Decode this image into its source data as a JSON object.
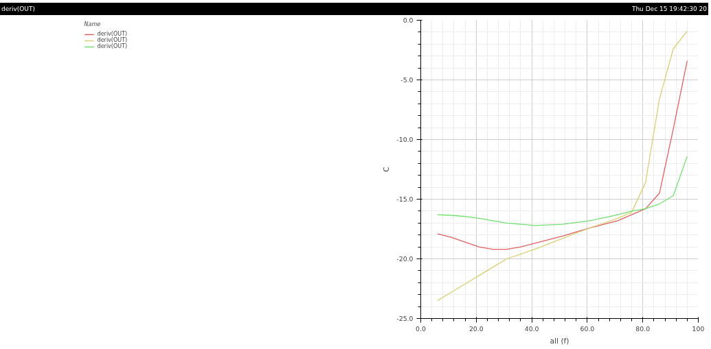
{
  "chart_data": {
    "type": "line",
    "title": "deriv(OUT)",
    "annotations": [
      "Thu Dec 15 19:42:30 20"
    ],
    "xlabel": "all (f)",
    "ylabel": "C",
    "legend_title": "Name",
    "legend": "top left",
    "grid": true,
    "marker": "none",
    "line_style": "solid",
    "x": [
      6,
      11,
      16,
      21,
      26,
      31,
      36,
      41,
      51,
      61,
      71,
      76,
      81,
      86,
      91,
      96
    ],
    "xlim": [
      0,
      100
    ],
    "xticks": [
      {
        "value": 0,
        "label": "0.0"
      },
      {
        "value": 20,
        "label": "20.0"
      },
      {
        "value": 40,
        "label": "40.0"
      },
      {
        "value": 60,
        "label": "60.0"
      },
      {
        "value": 80,
        "label": "80.0"
      },
      {
        "value": 100,
        "label": "100"
      }
    ],
    "ylim": [
      -25,
      0
    ],
    "yticks": [
      {
        "value": -25,
        "label": "-25.0"
      },
      {
        "value": -20,
        "label": "-20.0"
      },
      {
        "value": -15,
        "label": "-15.0"
      },
      {
        "value": -10,
        "label": "-10.0"
      },
      {
        "value": -5,
        "label": "-5.0"
      },
      {
        "value": 0,
        "label": "0.0"
      }
    ],
    "series": [
      {
        "name": "deriv(OUT)",
        "color": "#e06060",
        "values": [
          -17.9,
          -18.2,
          -18.6,
          -19.0,
          -19.2,
          -19.2,
          -19.0,
          -18.7,
          -18.1,
          -17.4,
          -16.8,
          -16.3,
          -15.8,
          -14.5,
          -9.1,
          -3.4
        ]
      },
      {
        "name": "deriv(OUT)",
        "color": "#d8d070",
        "values": [
          -23.5,
          -22.8,
          -22.1,
          -21.4,
          -20.7,
          -20.0,
          -19.6,
          -19.2,
          -18.3,
          -17.4,
          -16.6,
          -16.1,
          -13.6,
          -6.6,
          -2.4,
          -0.9
        ]
      },
      {
        "name": "deriv(OUT)",
        "color": "#70e070",
        "values": [
          -16.3,
          -16.35,
          -16.45,
          -16.6,
          -16.8,
          -17.0,
          -17.1,
          -17.2,
          -17.1,
          -16.8,
          -16.3,
          -16.0,
          -15.8,
          -15.4,
          -14.7,
          -11.4
        ]
      }
    ]
  }
}
